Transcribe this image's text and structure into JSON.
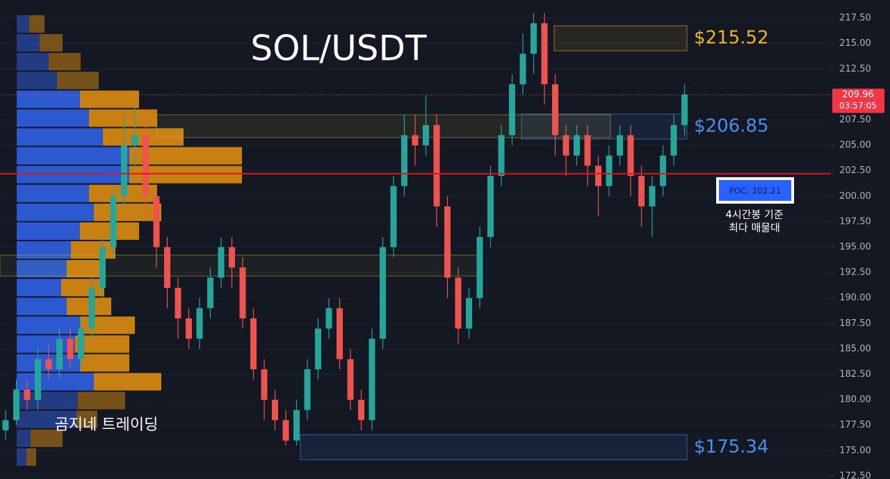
{
  "chart_data": {
    "type": "candlestick",
    "title": "SOL/USDT",
    "watermark": "곰지네 트레이딩",
    "ylim": [
      172.22,
      219.28
    ],
    "yticks": [
      {
        "value": 172.5,
        "label": "172.50"
      },
      {
        "value": 175,
        "label": "175.00"
      },
      {
        "value": 177.5,
        "label": "177.50"
      },
      {
        "value": 180,
        "label": "180.00"
      },
      {
        "value": 182.5,
        "label": "182.50"
      },
      {
        "value": 185,
        "label": "185.00"
      },
      {
        "value": 187.5,
        "label": "187.50"
      },
      {
        "value": 190,
        "label": "190.00"
      },
      {
        "value": 192.5,
        "label": "192.50"
      },
      {
        "value": 195,
        "label": "195.00"
      },
      {
        "value": 197.5,
        "label": "197.50"
      },
      {
        "value": 200,
        "label": "200.00"
      },
      {
        "value": 202.5,
        "label": "202.50"
      },
      {
        "value": 205,
        "label": "205.00"
      },
      {
        "value": 207.5,
        "label": "207.50"
      },
      {
        "value": 210,
        "label": "210.00"
      },
      {
        "value": 212.5,
        "label": "212.50"
      },
      {
        "value": 215,
        "label": "215.00"
      },
      {
        "value": 217.5,
        "label": "217.50"
      }
    ],
    "up_color": "#26a69a",
    "down_color": "#ef5350",
    "candles": [
      [
        177,
        179,
        176,
        178
      ],
      [
        178,
        182,
        177.5,
        181
      ],
      [
        181,
        182,
        179,
        180
      ],
      [
        180,
        185,
        179,
        184
      ],
      [
        184,
        185.5,
        182,
        183
      ],
      [
        183,
        187,
        182,
        186
      ],
      [
        186,
        187,
        183,
        184
      ],
      [
        184,
        188,
        183,
        187
      ],
      [
        187,
        192,
        186,
        191
      ],
      [
        191,
        196,
        190,
        195
      ],
      [
        195,
        201,
        194,
        200
      ],
      [
        200,
        208,
        199,
        205
      ],
      [
        205,
        209,
        203,
        206
      ],
      [
        206,
        207,
        198,
        200
      ],
      [
        200,
        201,
        193,
        195
      ],
      [
        195,
        196,
        189,
        191
      ],
      [
        191,
        192,
        186,
        188
      ],
      [
        188,
        189,
        185,
        186
      ],
      [
        186,
        190,
        185,
        189
      ],
      [
        189,
        193,
        188,
        192
      ],
      [
        192,
        196,
        191,
        195
      ],
      [
        195,
        196,
        191,
        193
      ],
      [
        193,
        194,
        187,
        188
      ],
      [
        188,
        189,
        182,
        183
      ],
      [
        183,
        184,
        178,
        180
      ],
      [
        180,
        181,
        177,
        178
      ],
      [
        178,
        179,
        175.5,
        176
      ],
      [
        176,
        180,
        175.5,
        179
      ],
      [
        179,
        184,
        178,
        183
      ],
      [
        183,
        188,
        182,
        187
      ],
      [
        187,
        190,
        186,
        189
      ],
      [
        189,
        190,
        183,
        184
      ],
      [
        184,
        185,
        179,
        180
      ],
      [
        180,
        181,
        177,
        178
      ],
      [
        178,
        187,
        177,
        186
      ],
      [
        186,
        196,
        185,
        195
      ],
      [
        195,
        202,
        194,
        201
      ],
      [
        201,
        208,
        200,
        206
      ],
      [
        206,
        208,
        203,
        205
      ],
      [
        205,
        210,
        204,
        207
      ],
      [
        207,
        208,
        197,
        199
      ],
      [
        199,
        200,
        190,
        192
      ],
      [
        192,
        193,
        185.5,
        187
      ],
      [
        187,
        191,
        186,
        190
      ],
      [
        190,
        197,
        189,
        196
      ],
      [
        196,
        203,
        195,
        202
      ],
      [
        202,
        207,
        201,
        206
      ],
      [
        206,
        212,
        205,
        211
      ],
      [
        211,
        216,
        210,
        214
      ],
      [
        214,
        218,
        212,
        217
      ],
      [
        217,
        218,
        209,
        211
      ],
      [
        211,
        212,
        204,
        206
      ],
      [
        206,
        207,
        202,
        204
      ],
      [
        204,
        207,
        203,
        206
      ],
      [
        206,
        207,
        201,
        203
      ],
      [
        203,
        204,
        198,
        201
      ],
      [
        201,
        205,
        200,
        204
      ],
      [
        204,
        207,
        203,
        206
      ],
      [
        206,
        207,
        200,
        202
      ],
      [
        202,
        203,
        197,
        199
      ],
      [
        199,
        202,
        196,
        201
      ],
      [
        201,
        205,
        200,
        204
      ],
      [
        204,
        208,
        203,
        207
      ],
      [
        207,
        211,
        206,
        210
      ]
    ],
    "volume_profile": {
      "bins": [
        217.85,
        216.0,
        214.15,
        212.3,
        210.45,
        208.6,
        206.75,
        204.9,
        203.05,
        201.2,
        199.35,
        197.5,
        195.65,
        193.8,
        191.95,
        190.1,
        188.25,
        186.4,
        184.55,
        182.7,
        180.85,
        179.0,
        177.15,
        175.3,
        173.45
      ],
      "buy": [
        18,
        33,
        46,
        58,
        91,
        104,
        124,
        162,
        162,
        104,
        111,
        91,
        78,
        72,
        64,
        72,
        91,
        84,
        91,
        111,
        88,
        86,
        20,
        14
      ],
      "sell": [
        22,
        33,
        46,
        60,
        85,
        98,
        116,
        162,
        162,
        98,
        97,
        85,
        64,
        54,
        62,
        64,
        79,
        78,
        71,
        97,
        68,
        30,
        46,
        14
      ],
      "buy_color": "#2f5ee0",
      "sell_color": "#d98a12"
    },
    "levels": [
      {
        "value": 215.52,
        "label": "$215.52",
        "color": "#f0b429"
      },
      {
        "value": 206.85,
        "label": "$206.85",
        "color": "#4a8ef0"
      },
      {
        "value": 175.34,
        "label": "$175.34",
        "color": "#4a8ef0"
      }
    ],
    "poc": {
      "value": 202.21,
      "label": "POC: 202.21",
      "color": "#e0141e"
    },
    "poc_note": [
      "4시간봉 기준",
      "최다 매물대"
    ],
    "last_price": 209.96,
    "countdown": "03:57:05"
  }
}
